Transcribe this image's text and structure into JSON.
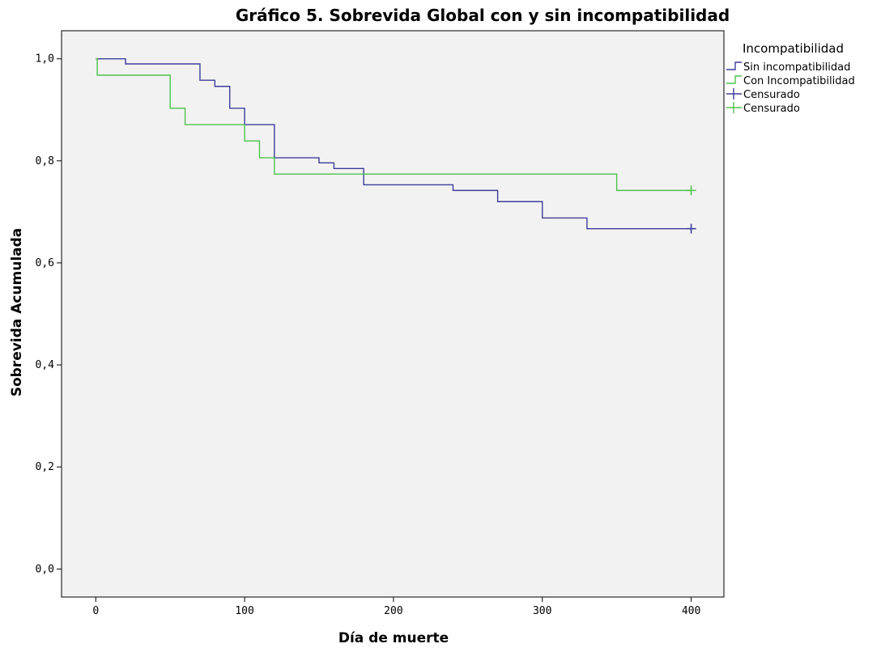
{
  "chart_data": {
    "type": "line",
    "title": "Gráfico 5. Sobrevida Global con y sin incompatibilidad",
    "xlabel": "Día de muerte",
    "ylabel": "Sobrevida Acumulada",
    "xlim": [
      -23,
      422
    ],
    "ylim": [
      -0.055,
      1.055
    ],
    "x_ticks": [
      0,
      100,
      200,
      300,
      400
    ],
    "x_tick_labels": [
      "0",
      "100",
      "200",
      "300",
      "400"
    ],
    "y_ticks": [
      0.0,
      0.2,
      0.4,
      0.6,
      0.8,
      1.0
    ],
    "y_tick_labels": [
      "0,0",
      "0,2",
      "0,4",
      "0,6",
      "0,8",
      "1,0"
    ],
    "grid": false,
    "legend_title": "Incompatibilidad",
    "legend_position": "right",
    "legend": [
      {
        "label": "Sin incompatibilidad",
        "symbol": "step",
        "color": "#3d3d99"
      },
      {
        "label": "Con Incompatibilidad",
        "symbol": "step",
        "color": "#4cc34c"
      },
      {
        "label": "Censurado",
        "symbol": "plus",
        "color": "#3d3d99"
      },
      {
        "label": "Censurado",
        "symbol": "plus",
        "color": "#4cc34c"
      }
    ],
    "series": [
      {
        "name": "Sin incompatibilidad",
        "color": "#3d3d99",
        "steps": [
          [
            0,
            1.0
          ],
          [
            20,
            0.99
          ],
          [
            70,
            0.958
          ],
          [
            80,
            0.946
          ],
          [
            90,
            0.903
          ],
          [
            100,
            0.871
          ],
          [
            120,
            0.806
          ],
          [
            150,
            0.796
          ],
          [
            160,
            0.785
          ],
          [
            180,
            0.753
          ],
          [
            240,
            0.742
          ],
          [
            270,
            0.72
          ],
          [
            300,
            0.688
          ],
          [
            330,
            0.667
          ],
          [
            400,
            0.667
          ]
        ],
        "censored": [
          [
            400,
            0.667
          ]
        ]
      },
      {
        "name": "Con Incompatibilidad",
        "color": "#4cc34c",
        "steps": [
          [
            0,
            1.0
          ],
          [
            1,
            0.968
          ],
          [
            50,
            0.903
          ],
          [
            60,
            0.871
          ],
          [
            100,
            0.839
          ],
          [
            110,
            0.806
          ],
          [
            120,
            0.774
          ],
          [
            350,
            0.742
          ],
          [
            400,
            0.742
          ]
        ],
        "censored": [
          [
            400,
            0.742
          ]
        ]
      }
    ]
  },
  "colors": {
    "plot_background": "#f2f2f2",
    "axis": "#000000"
  }
}
